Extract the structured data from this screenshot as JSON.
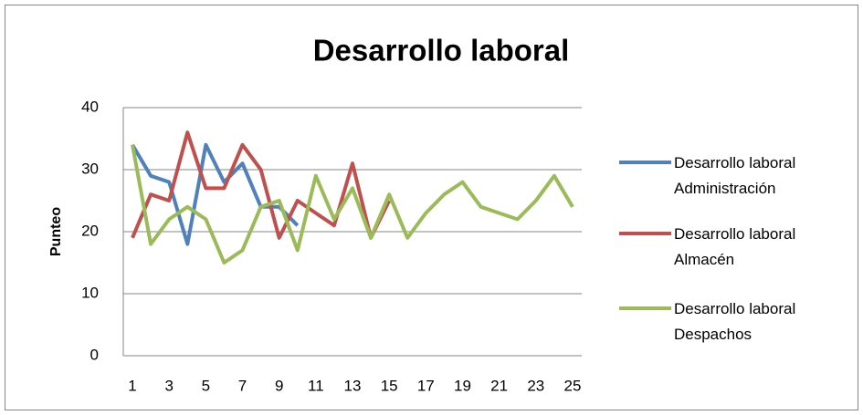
{
  "chart_data": {
    "type": "line",
    "title": "Desarrollo laboral",
    "y_label": "Punteo",
    "categories": [
      1,
      null,
      3,
      null,
      5,
      null,
      7,
      null,
      9,
      null,
      11,
      null,
      13,
      null,
      15,
      null,
      17,
      null,
      19,
      null,
      21,
      null,
      23,
      null,
      25
    ],
    "series": [
      {
        "name": "Desarrollo laboral Administración",
        "color": "#4f81bd",
        "values": [
          34,
          29,
          28,
          18,
          34,
          28,
          31,
          24,
          24,
          21,
          null,
          null,
          null,
          null,
          null,
          null,
          null,
          null,
          null,
          null,
          null,
          null,
          null,
          null,
          null
        ]
      },
      {
        "name": "Desarrollo laboral Almacén",
        "color": "#c0504d",
        "values": [
          19,
          26,
          25,
          36,
          27,
          27,
          34,
          30,
          19,
          25,
          23,
          21,
          31,
          19,
          25,
          null,
          null,
          null,
          null,
          null,
          null,
          null,
          null,
          null,
          null
        ]
      },
      {
        "name": "Desarrollo laboral Despachos",
        "color": "#9bbb59",
        "values": [
          34,
          18,
          22,
          24,
          22,
          15,
          17,
          24,
          25,
          17,
          29,
          22,
          27,
          19,
          26,
          19,
          23,
          26,
          28,
          24,
          23,
          22,
          25,
          29,
          24
        ]
      }
    ],
    "ylim": [
      0,
      40
    ],
    "yticks": [
      0,
      10,
      20,
      30,
      40
    ],
    "grid": true,
    "legend": "right"
  }
}
